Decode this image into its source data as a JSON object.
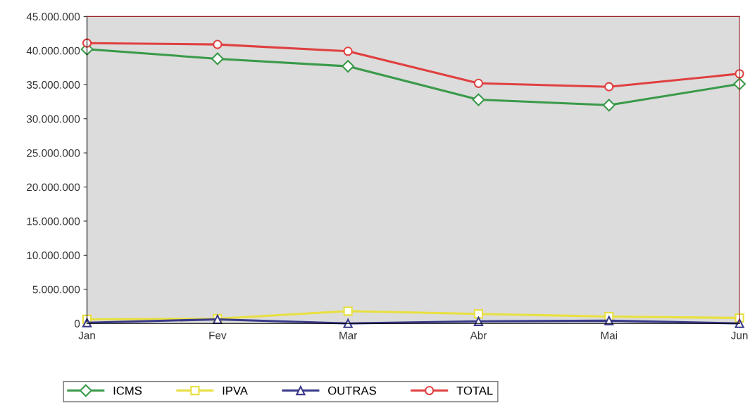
{
  "chart_data": {
    "type": "line",
    "categories": [
      "Jan",
      "Fev",
      "Mar",
      "Abr",
      "Mai",
      "Jun"
    ],
    "series": [
      {
        "name": "ICMS",
        "color": "#3a9a4a",
        "marker": "diamond",
        "values": [
          40200000,
          38800000,
          37700000,
          32800000,
          32000000,
          35100000
        ]
      },
      {
        "name": "IPVA",
        "color": "#e8e040",
        "marker": "square",
        "values": [
          600000,
          700000,
          1800000,
          1400000,
          1000000,
          800000
        ]
      },
      {
        "name": "OUTRAS",
        "color": "#3a3a8a",
        "marker": "triangle",
        "values": [
          100000,
          600000,
          0,
          300000,
          400000,
          0
        ]
      },
      {
        "name": "TOTAL",
        "color": "#e04040",
        "marker": "circle",
        "values": [
          41100000,
          40900000,
          39900000,
          35200000,
          34700000,
          36600000
        ]
      }
    ],
    "ylim": [
      0,
      45000000
    ],
    "yticks": [
      {
        "value": 0,
        "label": "0"
      },
      {
        "value": 5000000,
        "label": "5.000.000"
      },
      {
        "value": 10000000,
        "label": "10.000.000"
      },
      {
        "value": 15000000,
        "label": "15.000.000"
      },
      {
        "value": 20000000,
        "label": "20.000.000"
      },
      {
        "value": 25000000,
        "label": "25.000.000"
      },
      {
        "value": 30000000,
        "label": "30.000.000"
      },
      {
        "value": 35000000,
        "label": "35.000.000"
      },
      {
        "value": 40000000,
        "label": "40.000.000"
      },
      {
        "value": 45000000,
        "label": "45.000.000"
      }
    ],
    "grid": false,
    "legend": "bottom left",
    "line_style": "solid"
  }
}
